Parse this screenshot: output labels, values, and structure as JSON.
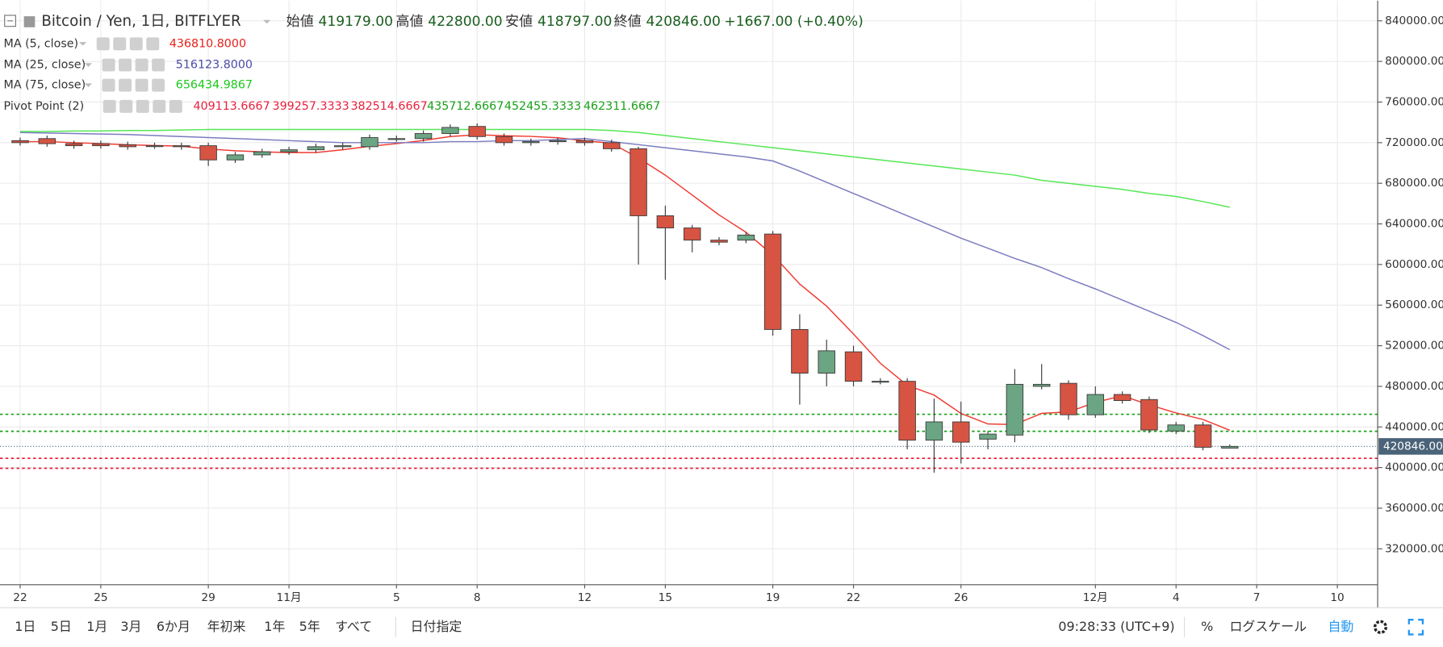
{
  "header": {
    "symbol": "Bitcoin / Yen, 1日, BITFLYER",
    "stats": [
      {
        "label": "始値",
        "value": "419179.00"
      },
      {
        "label": "高値",
        "value": "422800.00"
      },
      {
        "label": "安値",
        "value": "418797.00"
      },
      {
        "label": "終値",
        "value": "420846.00"
      }
    ],
    "change": "+1667.00 (+0.40%)"
  },
  "chart_data": {
    "type": "candlestick",
    "open": [
      722000,
      724000,
      719000,
      719000,
      718000,
      717000,
      717000,
      717000,
      703000,
      708000,
      711000,
      713000,
      716000,
      716000,
      724000,
      724000,
      729000,
      736000,
      726000,
      720000,
      721000,
      722000,
      720000,
      714000,
      648000,
      636000,
      624000,
      624000,
      630000,
      536000,
      493000,
      514000,
      485000,
      485000,
      427000,
      445000,
      428000,
      432000,
      480000,
      483000,
      452000,
      472000,
      467000,
      436000,
      442000,
      419179
    ],
    "high": [
      725000,
      727000,
      722000,
      722000,
      721000,
      720000,
      720000,
      720000,
      711000,
      714000,
      716000,
      719000,
      720000,
      728000,
      727000,
      732000,
      738000,
      739000,
      729000,
      724000,
      725000,
      725000,
      723000,
      716000,
      658000,
      639000,
      627000,
      632000,
      633000,
      551000,
      526000,
      520000,
      488000,
      488000,
      468000,
      465000,
      436000,
      497000,
      502000,
      486000,
      480000,
      475000,
      470000,
      445000,
      445000,
      422800
    ],
    "low": [
      717000,
      716000,
      714000,
      714000,
      713000,
      714000,
      713000,
      697000,
      700000,
      705000,
      708000,
      710000,
      713000,
      713000,
      721000,
      721000,
      726000,
      723000,
      717000,
      717000,
      718000,
      717000,
      711000,
      600000,
      585000,
      612000,
      619000,
      621000,
      530000,
      462000,
      480000,
      480000,
      482000,
      418000,
      395000,
      404000,
      418000,
      425000,
      477000,
      447000,
      449000,
      463000,
      434000,
      433000,
      417000,
      418797
    ],
    "close": [
      720000,
      719000,
      717000,
      717000,
      716000,
      717000,
      716000,
      703000,
      708000,
      711000,
      713000,
      716000,
      717000,
      725000,
      724000,
      729000,
      735000,
      726000,
      720000,
      721000,
      722000,
      720000,
      714000,
      648000,
      636000,
      624000,
      622000,
      629000,
      536000,
      493000,
      515000,
      485000,
      485000,
      427000,
      445000,
      425000,
      433000,
      482000,
      482000,
      452000,
      472000,
      466000,
      437000,
      442000,
      420000,
      420846
    ],
    "up_color": "#6ba583",
    "down_color": "#d75442",
    "border_color": "#3b3b3b",
    "indicators": [
      {
        "name": "MA (5, close)",
        "value_label": "436810.8000",
        "color": "#f03c32",
        "text_color": "#e8201a",
        "values": [
          721000,
          721000,
          720000,
          719000,
          717800,
          717200,
          716600,
          713800,
          712000,
          711000,
          710200,
          710200,
          713000,
          716400,
          719000,
          722200,
          726000,
          727800,
          726800,
          726200,
          724800,
          721800,
          719400,
          705000,
          688000,
          668400,
          648800,
          631800,
          609400,
          580800,
          559000,
          531600,
          502800,
          481000,
          471400,
          453400,
          443000,
          442400,
          453400,
          454800,
          464200,
          470800,
          461800,
          453800,
          447400,
          436810.8
        ]
      },
      {
        "name": "MA (25, close)",
        "value_label": "516123.8000",
        "color": "#7b7bc0",
        "text_color": "#4a4aa8",
        "values": [
          730000,
          729500,
          729000,
          728500,
          728000,
          727000,
          726000,
          725000,
          724000,
          723000,
          722000,
          721000,
          720000,
          720000,
          720000,
          720000,
          721000,
          721000,
          722000,
          722000,
          723000,
          724000,
          721000,
          718000,
          715000,
          712000,
          709000,
          706000,
          702000,
          692000,
          681000,
          670000,
          659000,
          648000,
          637000,
          626000,
          616000,
          606000,
          597000,
          586000,
          576000,
          565000,
          554000,
          543000,
          530000,
          516123.8
        ]
      },
      {
        "name": "MA (75, close)",
        "value_label": "656434.9867",
        "color": "#55e655",
        "text_color": "#18c918",
        "values": [
          731000,
          731000,
          731500,
          731500,
          732000,
          732000,
          732500,
          733000,
          733000,
          733000,
          733000,
          733000,
          733000,
          733000,
          733000,
          733000,
          733000,
          733000,
          733000,
          733000,
          733000,
          733000,
          732000,
          730000,
          727000,
          724000,
          721000,
          718000,
          715000,
          712000,
          709000,
          706000,
          703000,
          700000,
          697000,
          694000,
          691000,
          688000,
          683000,
          680000,
          677000,
          674000,
          670000,
          667000,
          662000,
          656434.9867
        ]
      }
    ],
    "pivot": {
      "name": "Pivot Point (2)",
      "values": [
        409113.6667,
        399257.3333,
        382514.6667,
        435712.6667,
        452455.3333,
        462311.6667
      ],
      "value_labels": [
        "409113.6667",
        "399257.3333",
        "382514.6667",
        "435712.6667",
        "452455.3333",
        "462311.6667"
      ],
      "colors": [
        "#e8203c",
        "#e8203c",
        "#e8203c",
        "#18a018",
        "#18a018",
        "#18a018"
      ],
      "line_shown": [
        true,
        true,
        false,
        true,
        true,
        false
      ]
    },
    "last_price": 420846,
    "last_price_label": "420846.00",
    "xlim": [
      -0.75,
      50.5
    ],
    "xticks": [
      {
        "value": 0,
        "label": "22"
      },
      {
        "value": 3,
        "label": "25"
      },
      {
        "value": 7,
        "label": "29"
      },
      {
        "value": 10,
        "label": "11月"
      },
      {
        "value": 14,
        "label": "5"
      },
      {
        "value": 17,
        "label": "8"
      },
      {
        "value": 21,
        "label": "12"
      },
      {
        "value": 24,
        "label": "15"
      },
      {
        "value": 28,
        "label": "19"
      },
      {
        "value": 31,
        "label": "22"
      },
      {
        "value": 35,
        "label": "26"
      },
      {
        "value": 40,
        "label": "12月"
      },
      {
        "value": 43,
        "label": "4"
      },
      {
        "value": 46,
        "label": "7"
      },
      {
        "value": 49,
        "label": "10"
      }
    ],
    "ylim": [
      284600,
      859900
    ],
    "yticks": [
      {
        "value": 320000,
        "label": "320000.00"
      },
      {
        "value": 360000,
        "label": "360000.00"
      },
      {
        "value": 400000,
        "label": "400000.00"
      },
      {
        "value": 440000,
        "label": "440000.00"
      },
      {
        "value": 480000,
        "label": "480000.00"
      },
      {
        "value": 520000,
        "label": "520000.00"
      },
      {
        "value": 560000,
        "label": "560000.00"
      },
      {
        "value": 600000,
        "label": "600000.00"
      },
      {
        "value": 640000,
        "label": "640000.00"
      },
      {
        "value": 680000,
        "label": "680000.00"
      },
      {
        "value": 720000,
        "label": "720000.00"
      },
      {
        "value": 760000,
        "label": "760000.00"
      },
      {
        "value": 800000,
        "label": "800000.00"
      },
      {
        "value": 840000,
        "label": "840000.00"
      }
    ],
    "grid": true
  },
  "toolbar": {
    "ranges": [
      "1日",
      "5日",
      "1月",
      "3月",
      "6か月",
      "年初来",
      "1年",
      "5年",
      "すべて"
    ],
    "date_range": "日付指定",
    "time": "09:28:33 (UTC+9)",
    "percent": "%",
    "log": "ログスケール",
    "auto": "自動"
  }
}
